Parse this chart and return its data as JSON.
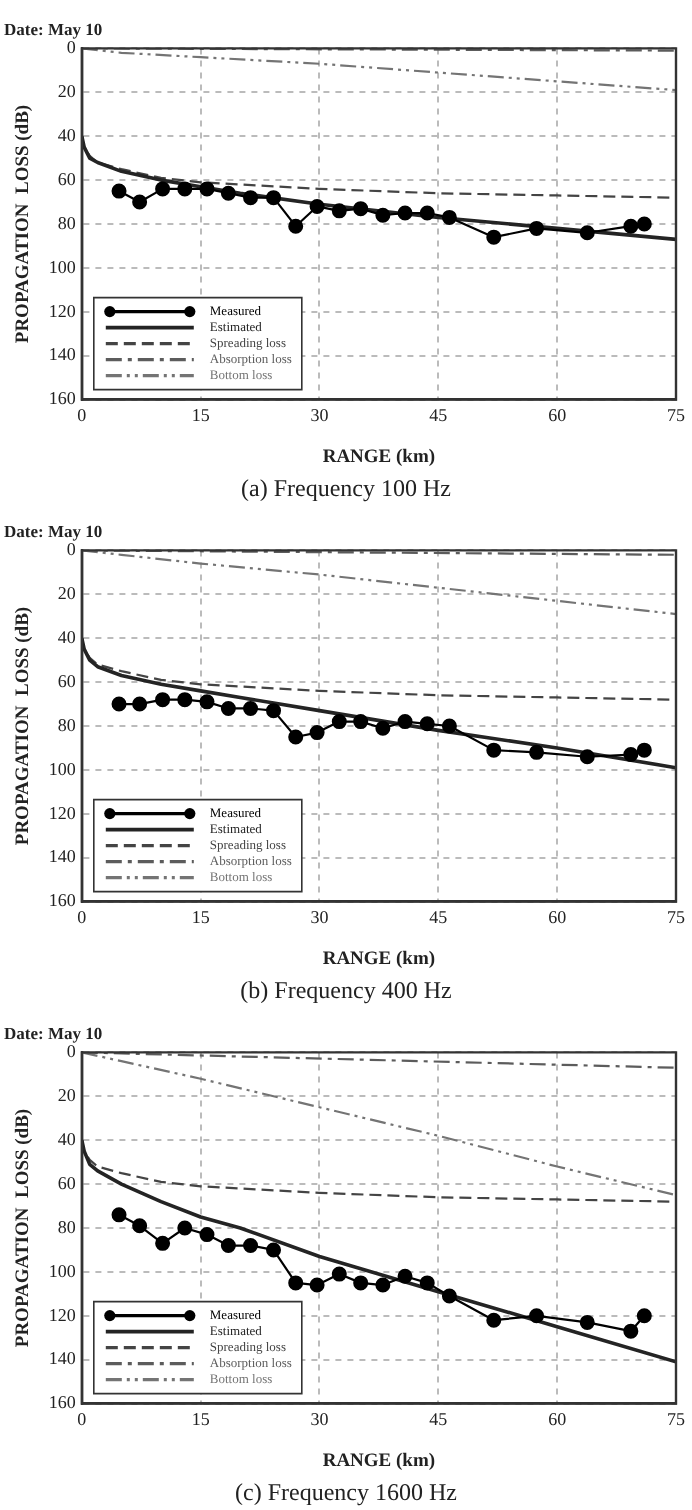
{
  "chart_data": [
    {
      "type": "line",
      "title": "Date: May 10",
      "xlabel": "RANGE (km)",
      "ylabel": "PROPAGATION  LOSS (dB)",
      "annotations": [
        "(a)  Frequency  100  Hz"
      ],
      "xlim": [
        0,
        75
      ],
      "ylim": [
        160,
        0
      ],
      "xticks": [
        0,
        15,
        30,
        45,
        60,
        75
      ],
      "yticks": [
        0,
        20,
        40,
        60,
        80,
        100,
        120,
        140,
        160
      ],
      "grid": true,
      "legend": "bottom left",
      "series": [
        {
          "name": "Measured",
          "color": "#000000",
          "marker": "circle",
          "line_style": "solid",
          "x": [
            4.7,
            7.3,
            10.2,
            13,
            15.8,
            18.5,
            21.3,
            24.2,
            27,
            29.7,
            32.5,
            35.2,
            38,
            40.8,
            43.6,
            46.4,
            52,
            57.4,
            63.8,
            69.3,
            71
          ],
          "values": [
            65,
            70,
            64,
            64,
            64,
            66,
            68,
            68,
            81,
            72,
            74,
            73,
            76,
            75,
            75,
            77,
            86,
            82,
            84,
            81,
            80
          ]
        },
        {
          "name": "Estimated",
          "color": "#242424",
          "marker": "none",
          "line_style": "solid",
          "x": [
            0,
            0.3,
            1,
            2,
            5,
            10,
            15,
            20,
            30,
            45,
            60,
            75
          ],
          "values": [
            40,
            45,
            50,
            52,
            56,
            60,
            63,
            66,
            71,
            77,
            82,
            87
          ]
        },
        {
          "name": "Spreading loss",
          "color": "#444444",
          "marker": "none",
          "line_style": "dashed",
          "x": [
            0,
            0.3,
            1,
            2,
            5,
            10,
            15,
            20,
            30,
            45,
            60,
            75
          ],
          "values": [
            40,
            45,
            49,
            52,
            55,
            59,
            61,
            62,
            64,
            66,
            67,
            68
          ]
        },
        {
          "name": "Absorption loss",
          "color": "#5c5c5c",
          "marker": "none",
          "line_style": "dashdot",
          "x": [
            0,
            75
          ],
          "values": [
            0,
            1
          ]
        },
        {
          "name": "Bottom loss",
          "color": "#747474",
          "marker": "none",
          "line_style": "dashdotdot",
          "x": [
            0,
            5,
            15,
            30,
            45,
            60,
            75
          ],
          "values": [
            0,
            2,
            4,
            7,
            11,
            15,
            19
          ]
        }
      ]
    },
    {
      "type": "line",
      "title": "Date: May 10",
      "xlabel": "RANGE (km)",
      "ylabel": "PROPAGATION  LOSS (dB)",
      "annotations": [
        "(b)  Frequency  400  Hz"
      ],
      "xlim": [
        0,
        75
      ],
      "ylim": [
        160,
        0
      ],
      "xticks": [
        0,
        15,
        30,
        45,
        60,
        75
      ],
      "yticks": [
        0,
        20,
        40,
        60,
        80,
        100,
        120,
        140,
        160
      ],
      "grid": true,
      "legend": "bottom left",
      "series": [
        {
          "name": "Measured",
          "color": "#000000",
          "marker": "circle",
          "line_style": "solid",
          "x": [
            4.7,
            7.3,
            10.2,
            13,
            15.8,
            18.5,
            21.3,
            24.2,
            27,
            29.7,
            32.5,
            35.2,
            38,
            40.8,
            43.6,
            46.4,
            52,
            57.4,
            63.8,
            69.3,
            71
          ],
          "values": [
            70,
            70,
            68,
            68,
            69,
            72,
            72,
            73,
            85,
            83,
            78,
            78,
            81,
            78,
            79,
            80,
            91,
            92,
            94,
            93,
            91
          ]
        },
        {
          "name": "Estimated",
          "color": "#242424",
          "marker": "none",
          "line_style": "solid",
          "x": [
            0,
            0.3,
            1,
            2,
            5,
            10,
            15,
            20,
            30,
            45,
            60,
            75
          ],
          "values": [
            40,
            45,
            50,
            53,
            57,
            61,
            64,
            67,
            73,
            82,
            90,
            99
          ]
        },
        {
          "name": "Spreading loss",
          "color": "#444444",
          "marker": "none",
          "line_style": "dashed",
          "x": [
            0,
            0.3,
            1,
            2,
            5,
            10,
            15,
            20,
            30,
            45,
            60,
            75
          ],
          "values": [
            40,
            45,
            49,
            52,
            55,
            59,
            61,
            62,
            64,
            66,
            67,
            68
          ]
        },
        {
          "name": "Absorption loss",
          "color": "#5c5c5c",
          "marker": "none",
          "line_style": "dashdot",
          "x": [
            0,
            75
          ],
          "values": [
            0,
            2
          ]
        },
        {
          "name": "Bottom loss",
          "color": "#747474",
          "marker": "none",
          "line_style": "dashdotdot",
          "x": [
            0,
            5,
            15,
            30,
            45,
            60,
            75
          ],
          "values": [
            0,
            2,
            6,
            11,
            17,
            23,
            29
          ]
        }
      ]
    },
    {
      "type": "line",
      "title": "Date: May 10",
      "xlabel": "RANGE (km)",
      "ylabel": "PROPAGATION  LOSS (dB)",
      "annotations": [
        "(c)  Frequency  1600  Hz"
      ],
      "xlim": [
        0,
        75
      ],
      "ylim": [
        160,
        0
      ],
      "xticks": [
        0,
        15,
        30,
        45,
        60,
        75
      ],
      "yticks": [
        0,
        20,
        40,
        60,
        80,
        100,
        120,
        140,
        160
      ],
      "grid": true,
      "legend": "bottom left",
      "series": [
        {
          "name": "Measured",
          "color": "#000000",
          "marker": "circle",
          "line_style": "solid",
          "x": [
            4.7,
            7.3,
            10.2,
            13,
            15.8,
            18.5,
            21.3,
            24.2,
            27,
            29.7,
            32.5,
            35.2,
            38,
            40.8,
            43.6,
            46.4,
            52,
            57.4,
            63.8,
            69.3,
            71
          ],
          "values": [
            74,
            79,
            87,
            80,
            83,
            88,
            88,
            90,
            105,
            106,
            101,
            105,
            106,
            102,
            105,
            111,
            122,
            120,
            123,
            127,
            120
          ]
        },
        {
          "name": "Estimated",
          "color": "#242424",
          "marker": "none",
          "line_style": "solid",
          "x": [
            0,
            0.3,
            1,
            2,
            5,
            10,
            15,
            20,
            30,
            45,
            60,
            75
          ],
          "values": [
            40,
            45,
            51,
            54,
            60,
            68,
            75,
            80,
            93,
            109,
            125,
            141
          ]
        },
        {
          "name": "Spreading loss",
          "color": "#444444",
          "marker": "none",
          "line_style": "dashed",
          "x": [
            0,
            0.3,
            1,
            2,
            5,
            10,
            15,
            20,
            30,
            45,
            60,
            75
          ],
          "values": [
            40,
            45,
            49,
            52,
            55,
            59,
            61,
            62,
            64,
            66,
            67,
            68
          ]
        },
        {
          "name": "Absorption loss",
          "color": "#5c5c5c",
          "marker": "none",
          "line_style": "dashdot",
          "x": [
            0,
            75
          ],
          "values": [
            0,
            7
          ]
        },
        {
          "name": "Bottom loss",
          "color": "#747474",
          "marker": "none",
          "line_style": "dashdotdot",
          "x": [
            0,
            5,
            15,
            30,
            45,
            60,
            75
          ],
          "values": [
            0,
            4,
            12,
            25,
            38,
            52,
            65
          ]
        }
      ]
    }
  ]
}
